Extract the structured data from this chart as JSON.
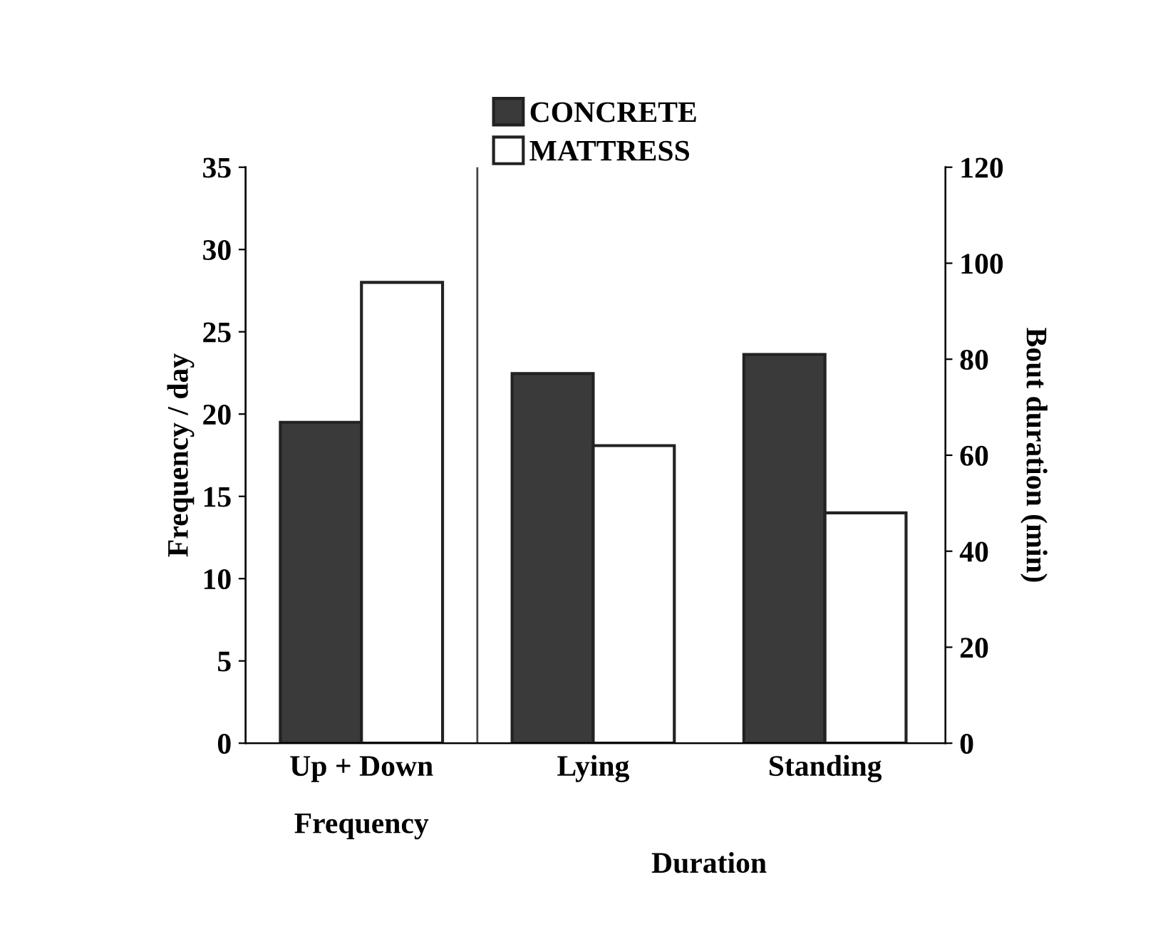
{
  "chart_data": {
    "type": "bar",
    "categories": [
      "Up + Down",
      "Lying",
      "Standing"
    ],
    "series": [
      {
        "name": "CONCRETE",
        "color": "#3a3a3a",
        "values": [
          19.5,
          null,
          null
        ]
      },
      {
        "name": "MATTRESS",
        "color": "#ffffff",
        "values": [
          28,
          null,
          null
        ]
      },
      {
        "color": "#3a3a3a",
        "values": [
          null,
          77,
          81
        ],
        "axis": "y2"
      },
      {
        "color": "#ffffff",
        "values": [
          null,
          62,
          48
        ],
        "axis": "y2"
      }
    ],
    "ylabel": "Frequency / day",
    "y2label": "Bout duration (min)",
    "ylim": [
      0,
      35
    ],
    "yticks": [
      0,
      5,
      10,
      15,
      20,
      25,
      30,
      35
    ],
    "y2lim": [
      0,
      120
    ],
    "y2ticks": [
      0,
      20,
      40,
      60,
      80,
      100,
      120
    ],
    "annotations": [
      "Frequency",
      "Duration"
    ],
    "legend": "top",
    "grid": false
  }
}
